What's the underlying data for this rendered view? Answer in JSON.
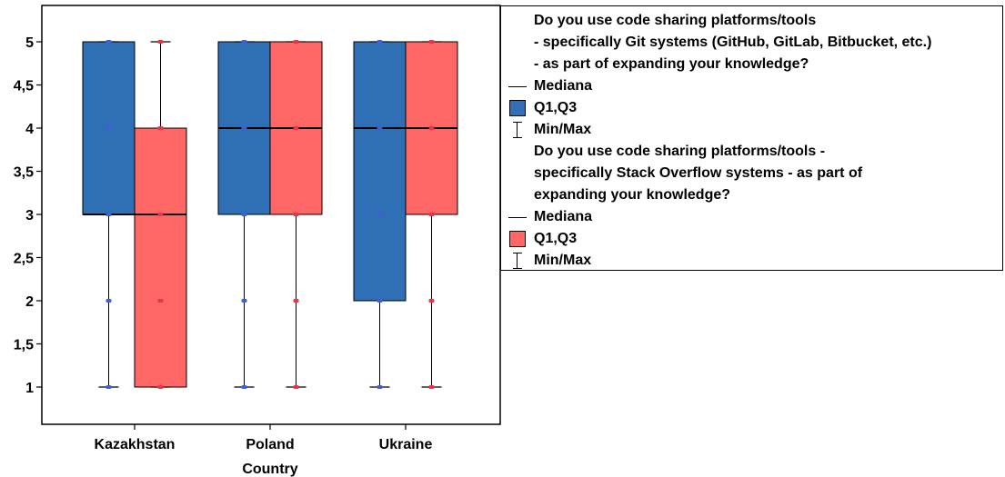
{
  "chart_data": {
    "type": "boxplot",
    "xlabel": "Country",
    "ylabel": "",
    "categories": [
      "Kazakhstan",
      "Poland",
      "Ukraine"
    ],
    "ylim": [
      0.55,
      5.35
    ],
    "yticks": [
      "1",
      "1,5",
      "2",
      "2,5",
      "3",
      "3,5",
      "4",
      "4,5",
      "5"
    ],
    "series": [
      {
        "name": "Do you use code sharing platforms/tools - specifically Git systems (GitHub, GitLab, Bitbucket, etc.) - as part of expanding your knowledge?",
        "color": "#2f6fb5",
        "dot_color": "#3f5fd6",
        "boxes": [
          {
            "min": 1,
            "q1": 3,
            "median": 3,
            "q3": 5,
            "max": 5,
            "points": [
              1,
              2,
              3,
              4,
              5
            ]
          },
          {
            "min": 1,
            "q1": 3,
            "median": 4,
            "q3": 5,
            "max": 5,
            "points": [
              1,
              2,
              3,
              4,
              5
            ]
          },
          {
            "min": 1,
            "q1": 2,
            "median": 4,
            "q3": 5,
            "max": 5,
            "points": [
              1,
              2,
              3,
              4,
              5
            ]
          }
        ]
      },
      {
        "name": "Do you use code sharing platforms/tools - specifically Stack Overflow systems - as part of expanding your knowledge?",
        "color": "#ff6666",
        "dot_color": "#ee3344",
        "boxes": [
          {
            "min": 1,
            "q1": 1,
            "median": 3,
            "q3": 4,
            "max": 5,
            "points": [
              1,
              2,
              3,
              4,
              5
            ]
          },
          {
            "min": 1,
            "q1": 3,
            "median": 4,
            "q3": 5,
            "max": 5,
            "points": [
              1,
              2,
              3,
              4,
              5
            ]
          },
          {
            "min": 1,
            "q1": 3,
            "median": 4,
            "q3": 5,
            "max": 5,
            "points": [
              1,
              2,
              3,
              4,
              5
            ]
          }
        ]
      }
    ],
    "legend": {
      "position": "right",
      "groups": [
        {
          "title_lines": [
            "Do you use code sharing platforms/tools",
            "- specifically Git systems (GitHub, GitLab, Bitbucket, etc.)",
            "- as part of expanding your knowledge?"
          ],
          "median_label": "Mediana",
          "box_label": "Q1,Q3",
          "minmax_label": "Min/Max",
          "color": "#2f6fb5"
        },
        {
          "title_lines": [
            "Do you use code sharing platforms/tools -",
            "specifically Stack Overflow systems - as part of",
            "expanding your knowledge?"
          ],
          "median_label": "Mediana",
          "box_label": "Q1,Q3",
          "minmax_label": "Min/Max",
          "color": "#ff6666"
        }
      ]
    }
  }
}
